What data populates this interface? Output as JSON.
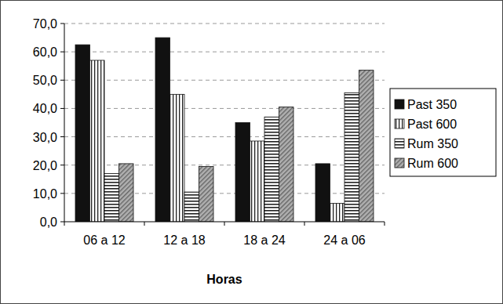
{
  "chart_data": {
    "type": "bar",
    "x_label": "Horas",
    "categories": [
      "06 a 12",
      "12 a 18",
      "18 a 24",
      "24 a 06"
    ],
    "series": [
      {
        "name": "Past 350",
        "color": "#111111",
        "values": [
          62.5,
          65,
          35,
          20.5
        ]
      },
      {
        "name": "Past 600",
        "color": "#222222",
        "values": [
          57,
          45,
          28.5,
          6.5
        ]
      },
      {
        "name": "Rum 350",
        "color": "#222222",
        "values": [
          17,
          10.5,
          37,
          45.5
        ]
      },
      {
        "name": "Rum 600",
        "color": "#666666",
        "values": [
          20.5,
          19.5,
          40.5,
          53.5
        ]
      }
    ],
    "ylim": [
      0,
      70
    ],
    "yticks": [
      {
        "value": 0,
        "label": "0,0"
      },
      {
        "value": 10,
        "label": "10,0"
      },
      {
        "value": 20,
        "label": "20,0"
      },
      {
        "value": 30,
        "label": "30,0"
      },
      {
        "value": 40,
        "label": "40,0"
      },
      {
        "value": 50,
        "label": "50,0"
      },
      {
        "value": 60,
        "label": "60,0"
      },
      {
        "value": 70,
        "label": "70,0"
      }
    ],
    "grid": true,
    "legend": "right"
  }
}
